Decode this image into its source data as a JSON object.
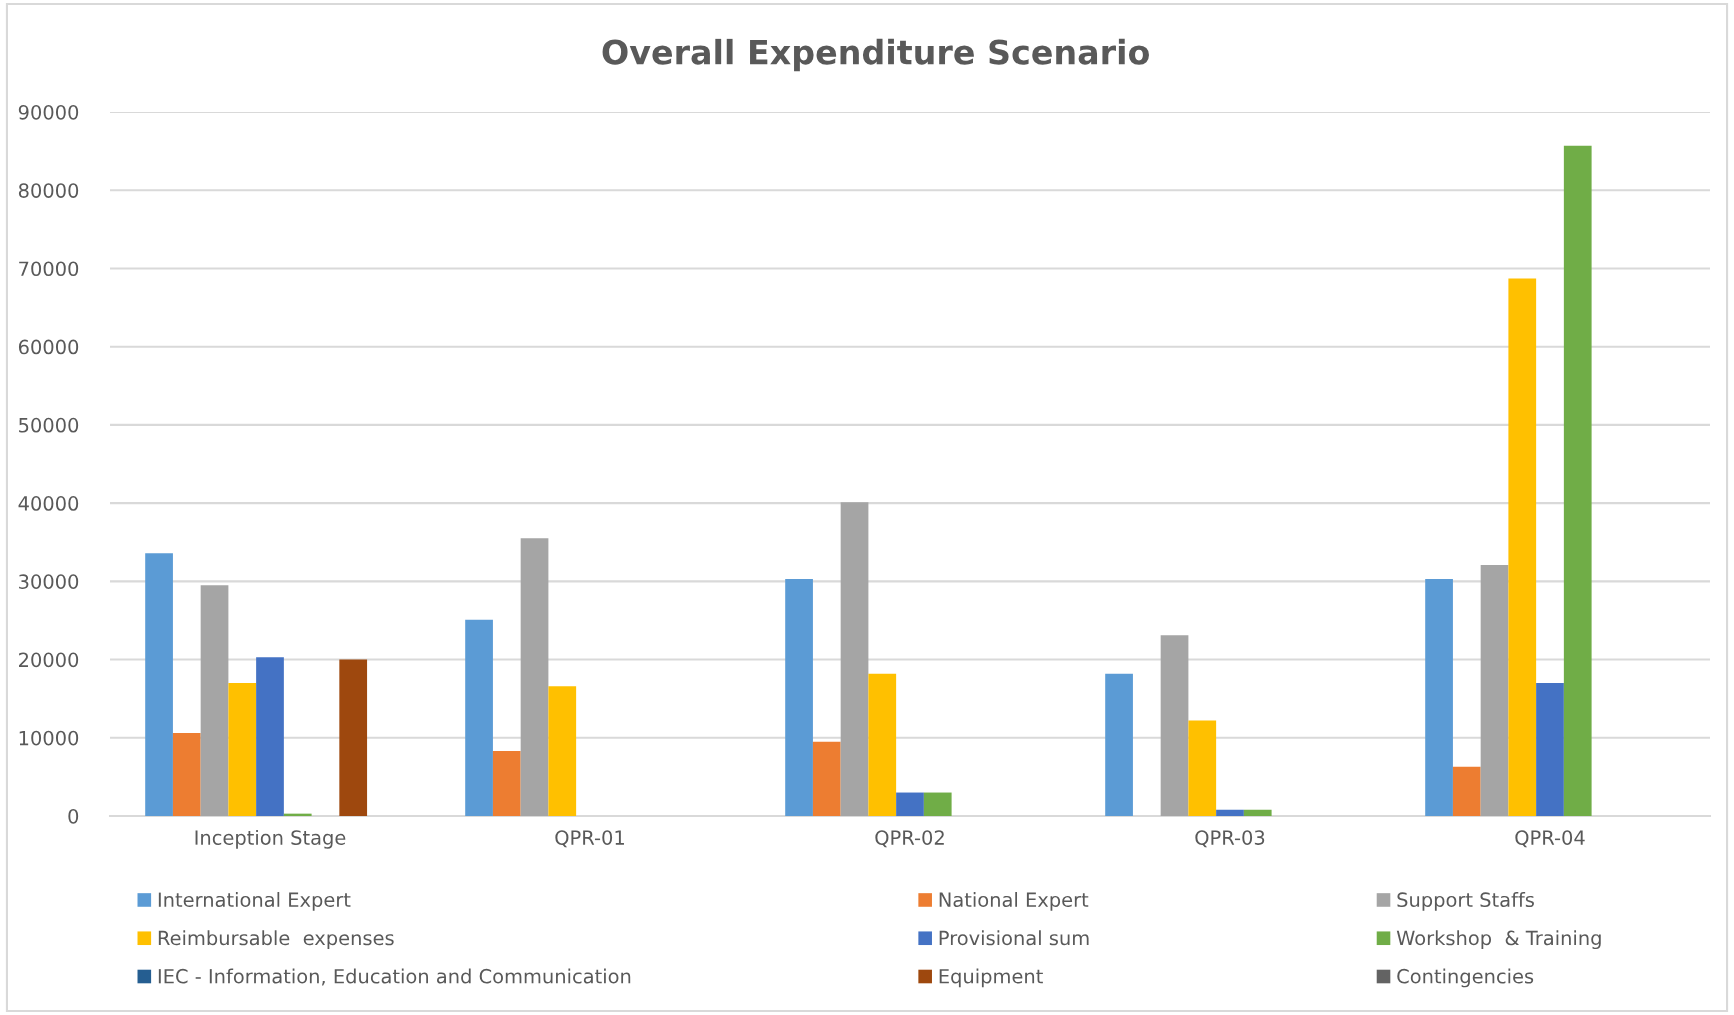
{
  "chart_data": {
    "type": "bar",
    "title": "Overall Expenditure Scenario",
    "categories": [
      "Inception Stage",
      "QPR-01",
      "QPR-02",
      "QPR-03",
      "QPR-04"
    ],
    "series": [
      {
        "name": "International Expert",
        "color": "#5b9bd5",
        "values": [
          33600,
          25100,
          30300,
          18200,
          30300
        ]
      },
      {
        "name": "National Expert",
        "color": "#ed7d31",
        "values": [
          10600,
          8300,
          9500,
          0,
          6300
        ]
      },
      {
        "name": "Support Staffs",
        "color": "#a5a5a5",
        "values": [
          29500,
          35500,
          40100,
          23100,
          32100
        ]
      },
      {
        "name": "Reimbursable  expenses",
        "color": "#ffc000",
        "values": [
          17000,
          16600,
          18200,
          12200,
          68700
        ]
      },
      {
        "name": "Provisional sum",
        "color": "#4472c4",
        "values": [
          20300,
          0,
          3000,
          800,
          17000
        ]
      },
      {
        "name": "Workshop  & Training",
        "color": "#70ad47",
        "values": [
          300,
          0,
          3000,
          800,
          85700
        ]
      },
      {
        "name": "IEC - Information, Education and Communication",
        "color": "#255e91",
        "values": [
          0,
          0,
          0,
          0,
          0
        ]
      },
      {
        "name": "Equipment",
        "color": "#9e480e",
        "values": [
          20000,
          0,
          0,
          0,
          0
        ]
      },
      {
        "name": "Contingencies",
        "color": "#636363",
        "values": [
          0,
          0,
          0,
          0,
          0
        ]
      }
    ],
    "ylim": [
      0,
      90000
    ],
    "yticks": [
      0,
      10000,
      20000,
      30000,
      40000,
      50000,
      60000,
      70000,
      80000,
      90000
    ],
    "grid": "y",
    "legend": "bottom"
  }
}
